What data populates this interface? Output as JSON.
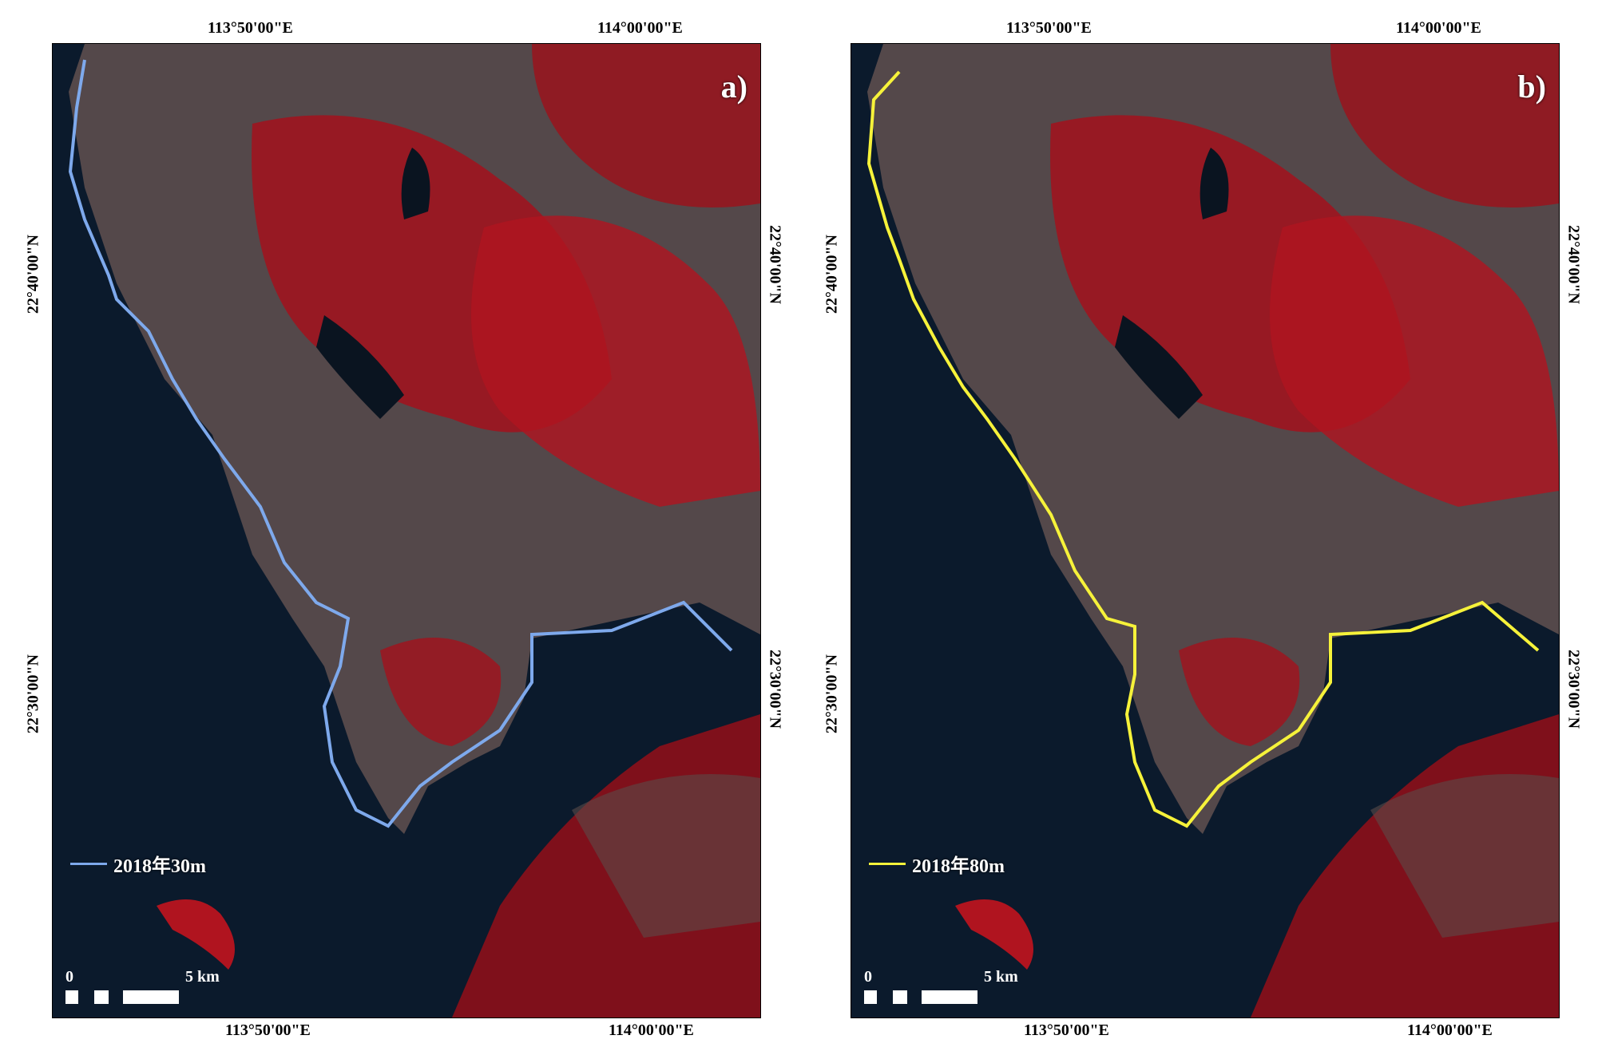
{
  "figure": {
    "panels": [
      {
        "letter": "a)",
        "legend_label": "2018年30m",
        "legend_color": "#7ea9ec",
        "line_color": "#7ea9ec"
      },
      {
        "letter": "b)",
        "legend_label": "2018年80m",
        "legend_color": "#f6f23a",
        "line_color": "#f6f23a"
      }
    ],
    "lon_labels": {
      "left": "113°50'00\"E",
      "right": "114°00'00\"E"
    },
    "lat_labels": {
      "upper": "22°40'00\"N",
      "lower": "22°30'00\"N"
    },
    "scale": {
      "zero": "0",
      "five": "5 km"
    },
    "colors": {
      "water": "#0b1a2c",
      "vegetation": "#a3121c",
      "urban": "#5a4b4a"
    }
  }
}
